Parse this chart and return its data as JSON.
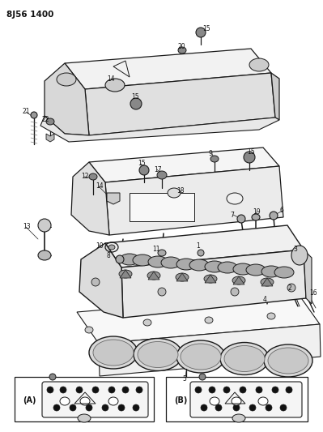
{
  "title": "8J56 1400",
  "bg_color": "#ffffff",
  "lc": "#1a1a1a",
  "fc_light": "#e8e8e8",
  "fc_white": "#ffffff",
  "figsize": [
    3.99,
    5.33
  ],
  "dpi": 100
}
